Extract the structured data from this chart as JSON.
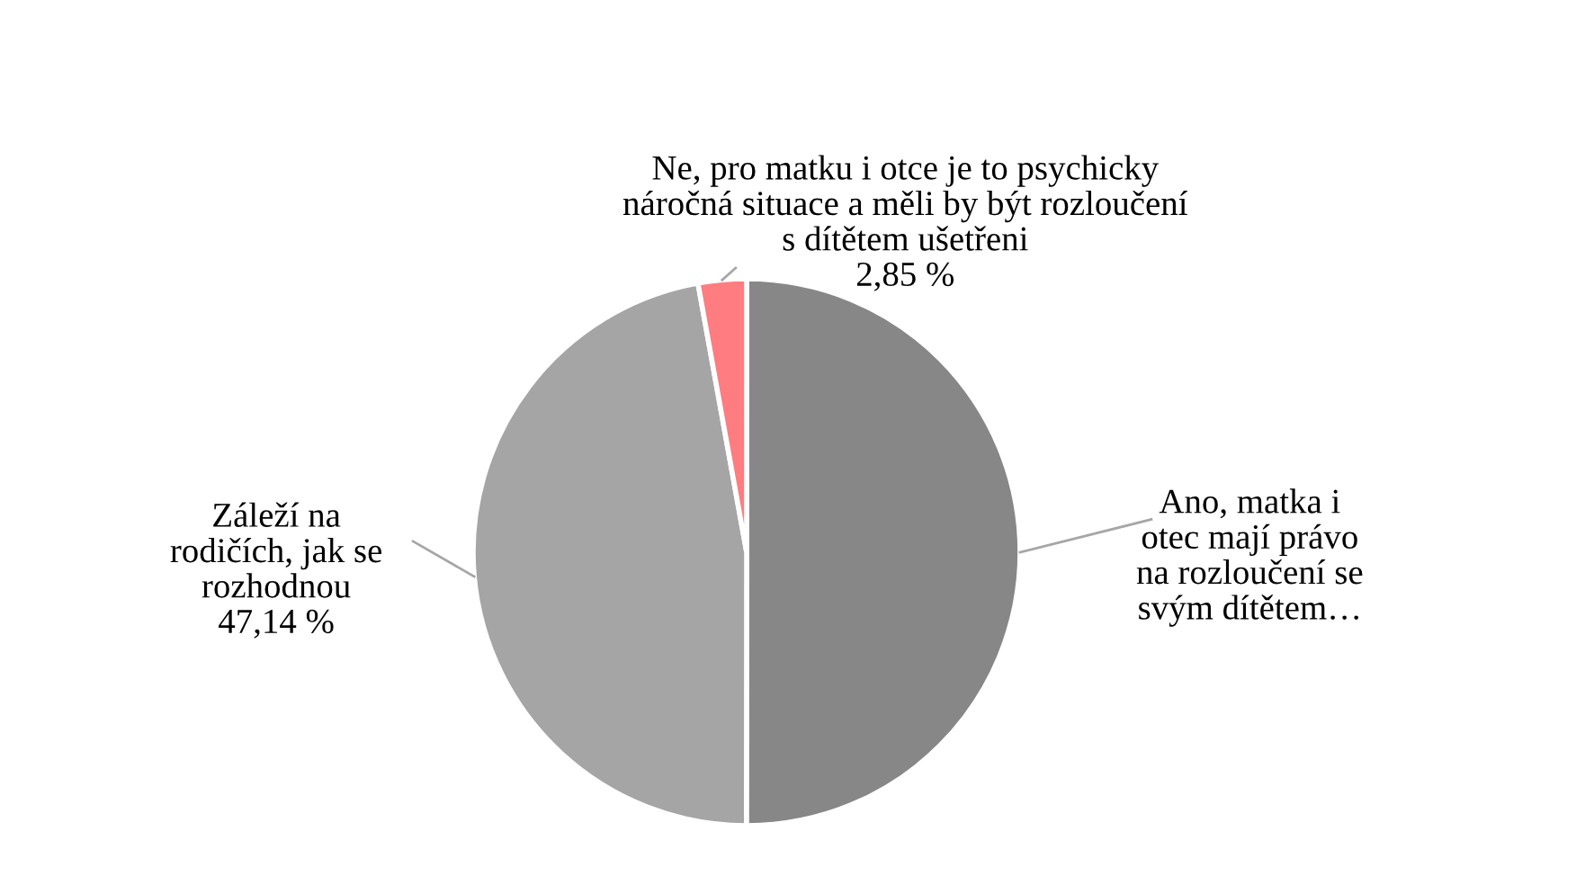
{
  "chart_data": {
    "type": "pie",
    "categories": [
      "Ano, matka i\notec mají právo\nna rozloučení se\nsvým dítětem…",
      "Záleží na\nrodičích, jak se\nrozhodnou",
      "Ne, pro matku i otce je to psychicky\nnáročná situace a měli by být rozloučení\ns dítětem ušetřeni"
    ],
    "values": [
      50.01,
      47.14,
      2.85
    ],
    "value_labels": [
      null,
      "47,14 %",
      "2,85 %"
    ],
    "colors": [
      "#878787",
      "#a5a5a5",
      "#ff7c80"
    ]
  }
}
